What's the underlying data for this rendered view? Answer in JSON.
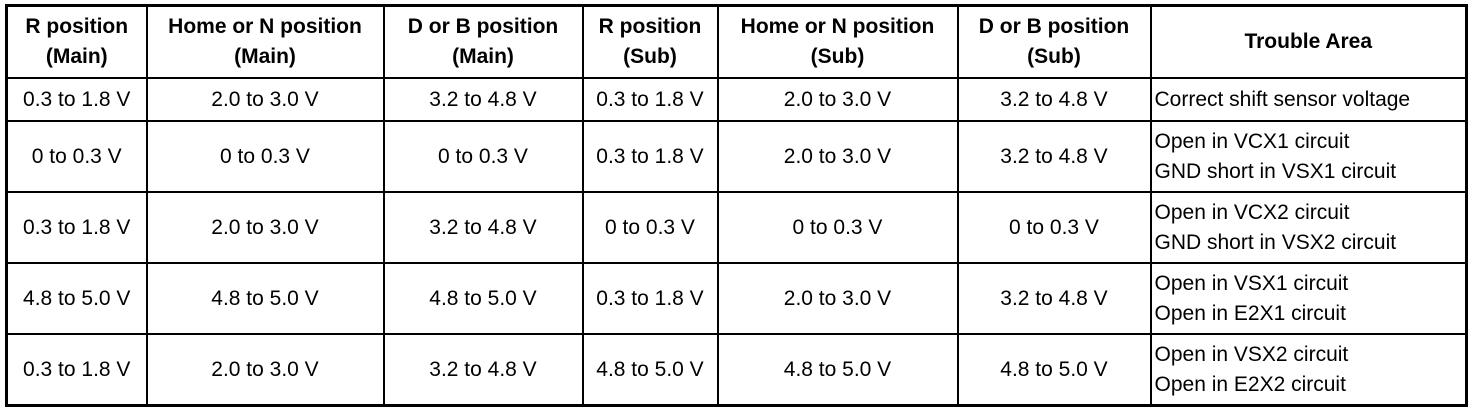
{
  "table": {
    "header": [
      [
        "R position",
        "(Main)"
      ],
      [
        "Home or N position",
        "(Main)"
      ],
      [
        "D or B position",
        "(Main)"
      ],
      [
        "R position",
        "(Sub)"
      ],
      [
        "Home or N position",
        "(Sub)"
      ],
      [
        "D or B position",
        "(Sub)"
      ],
      [
        "Trouble Area"
      ]
    ],
    "rows": [
      [
        [
          "0.3 to 1.8 V"
        ],
        [
          "2.0 to 3.0 V"
        ],
        [
          "3.2 to 4.8 V"
        ],
        [
          "0.3 to 1.8 V"
        ],
        [
          "2.0 to 3.0 V"
        ],
        [
          "3.2 to 4.8 V"
        ],
        [
          "Correct shift sensor voltage"
        ]
      ],
      [
        [
          "0 to 0.3 V"
        ],
        [
          "0 to 0.3 V"
        ],
        [
          "0 to 0.3 V"
        ],
        [
          "0.3 to 1.8 V"
        ],
        [
          "2.0 to 3.0 V"
        ],
        [
          "3.2 to 4.8 V"
        ],
        [
          "Open in VCX1 circuit",
          "GND short in VSX1 circuit"
        ]
      ],
      [
        [
          "0.3 to 1.8 V"
        ],
        [
          "2.0 to 3.0 V"
        ],
        [
          "3.2 to 4.8 V"
        ],
        [
          "0 to 0.3 V"
        ],
        [
          "0 to 0.3 V"
        ],
        [
          "0 to 0.3 V"
        ],
        [
          "Open in VCX2 circuit",
          "GND short in VSX2 circuit"
        ]
      ],
      [
        [
          "4.8 to 5.0 V"
        ],
        [
          "4.8 to 5.0 V"
        ],
        [
          "4.8 to 5.0 V"
        ],
        [
          "0.3 to 1.8 V"
        ],
        [
          "2.0 to 3.0 V"
        ],
        [
          "3.2 to 4.8 V"
        ],
        [
          "Open in VSX1 circuit",
          "Open in E2X1 circuit"
        ]
      ],
      [
        [
          "0.3 to 1.8 V"
        ],
        [
          "2.0 to 3.0 V"
        ],
        [
          "3.2 to 4.8 V"
        ],
        [
          "4.8 to 5.0 V"
        ],
        [
          "4.8 to 5.0 V"
        ],
        [
          "4.8 to 5.0 V"
        ],
        [
          "Open in VSX2 circuit",
          "Open in E2X2 circuit"
        ]
      ]
    ]
  }
}
